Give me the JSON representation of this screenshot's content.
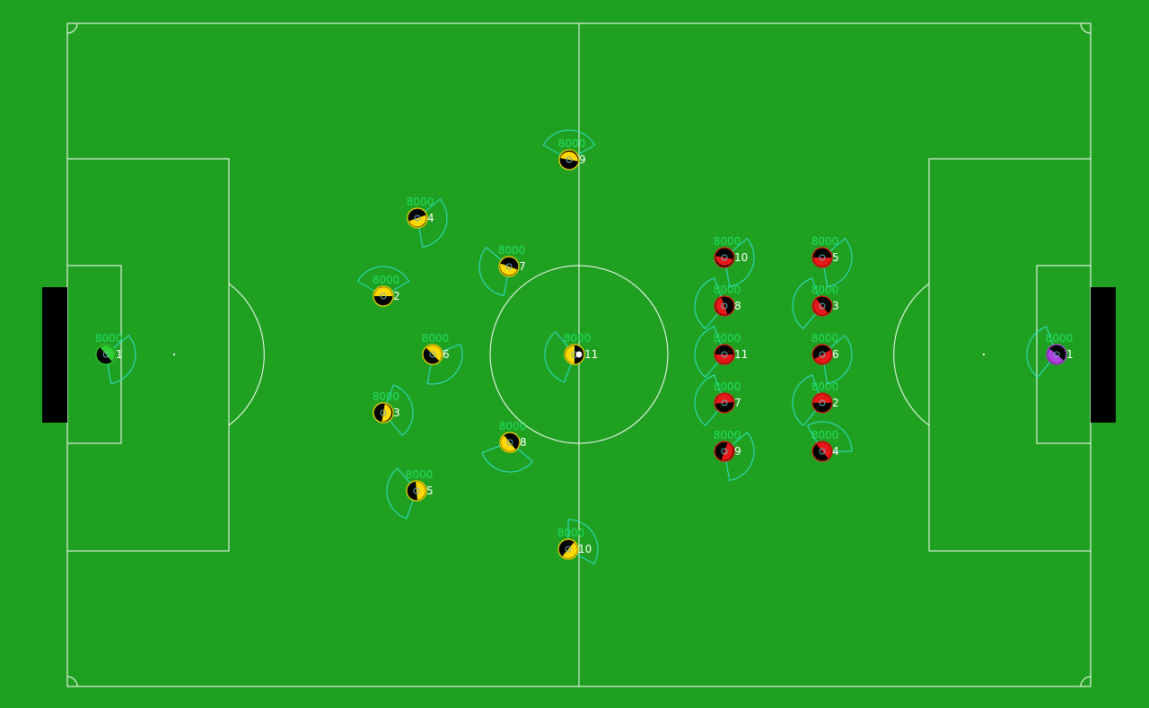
{
  "colors": {
    "pitch": "#20a020",
    "lines": "#ffffff",
    "goal": "#000000",
    "left_team": "#ffd800",
    "left_goalie": "#30d030",
    "right_team": "#e81818",
    "right_goalie": "#b040e0",
    "view_cone": "#30e0d0",
    "stamina_text": "#22dd66",
    "ball": "#ffffff"
  },
  "left_team": {
    "players": [
      {
        "unum": "1",
        "stamina": "8000",
        "goalie": true
      },
      {
        "unum": "2",
        "stamina": "8000"
      },
      {
        "unum": "3",
        "stamina": "8000"
      },
      {
        "unum": "4",
        "stamina": "8000"
      },
      {
        "unum": "5",
        "stamina": "8000"
      },
      {
        "unum": "6",
        "stamina": "8000"
      },
      {
        "unum": "7",
        "stamina": "8000"
      },
      {
        "unum": "8",
        "stamina": "8000"
      },
      {
        "unum": "9",
        "stamina": "8000"
      },
      {
        "unum": "10",
        "stamina": "8000"
      },
      {
        "unum": "11",
        "stamina": "8000"
      }
    ]
  },
  "right_team": {
    "players": [
      {
        "unum": "1",
        "stamina": "8000",
        "goalie": true
      },
      {
        "unum": "2",
        "stamina": "8000"
      },
      {
        "unum": "3",
        "stamina": "8000"
      },
      {
        "unum": "4",
        "stamina": "8000"
      },
      {
        "unum": "5",
        "stamina": "8000"
      },
      {
        "unum": "6",
        "stamina": "8000"
      },
      {
        "unum": "7",
        "stamina": "8000"
      },
      {
        "unum": "8",
        "stamina": "8000"
      },
      {
        "unum": "9",
        "stamina": "8000"
      },
      {
        "unum": "10",
        "stamina": "8000"
      },
      {
        "unum": "11",
        "stamina": "8000"
      }
    ]
  }
}
